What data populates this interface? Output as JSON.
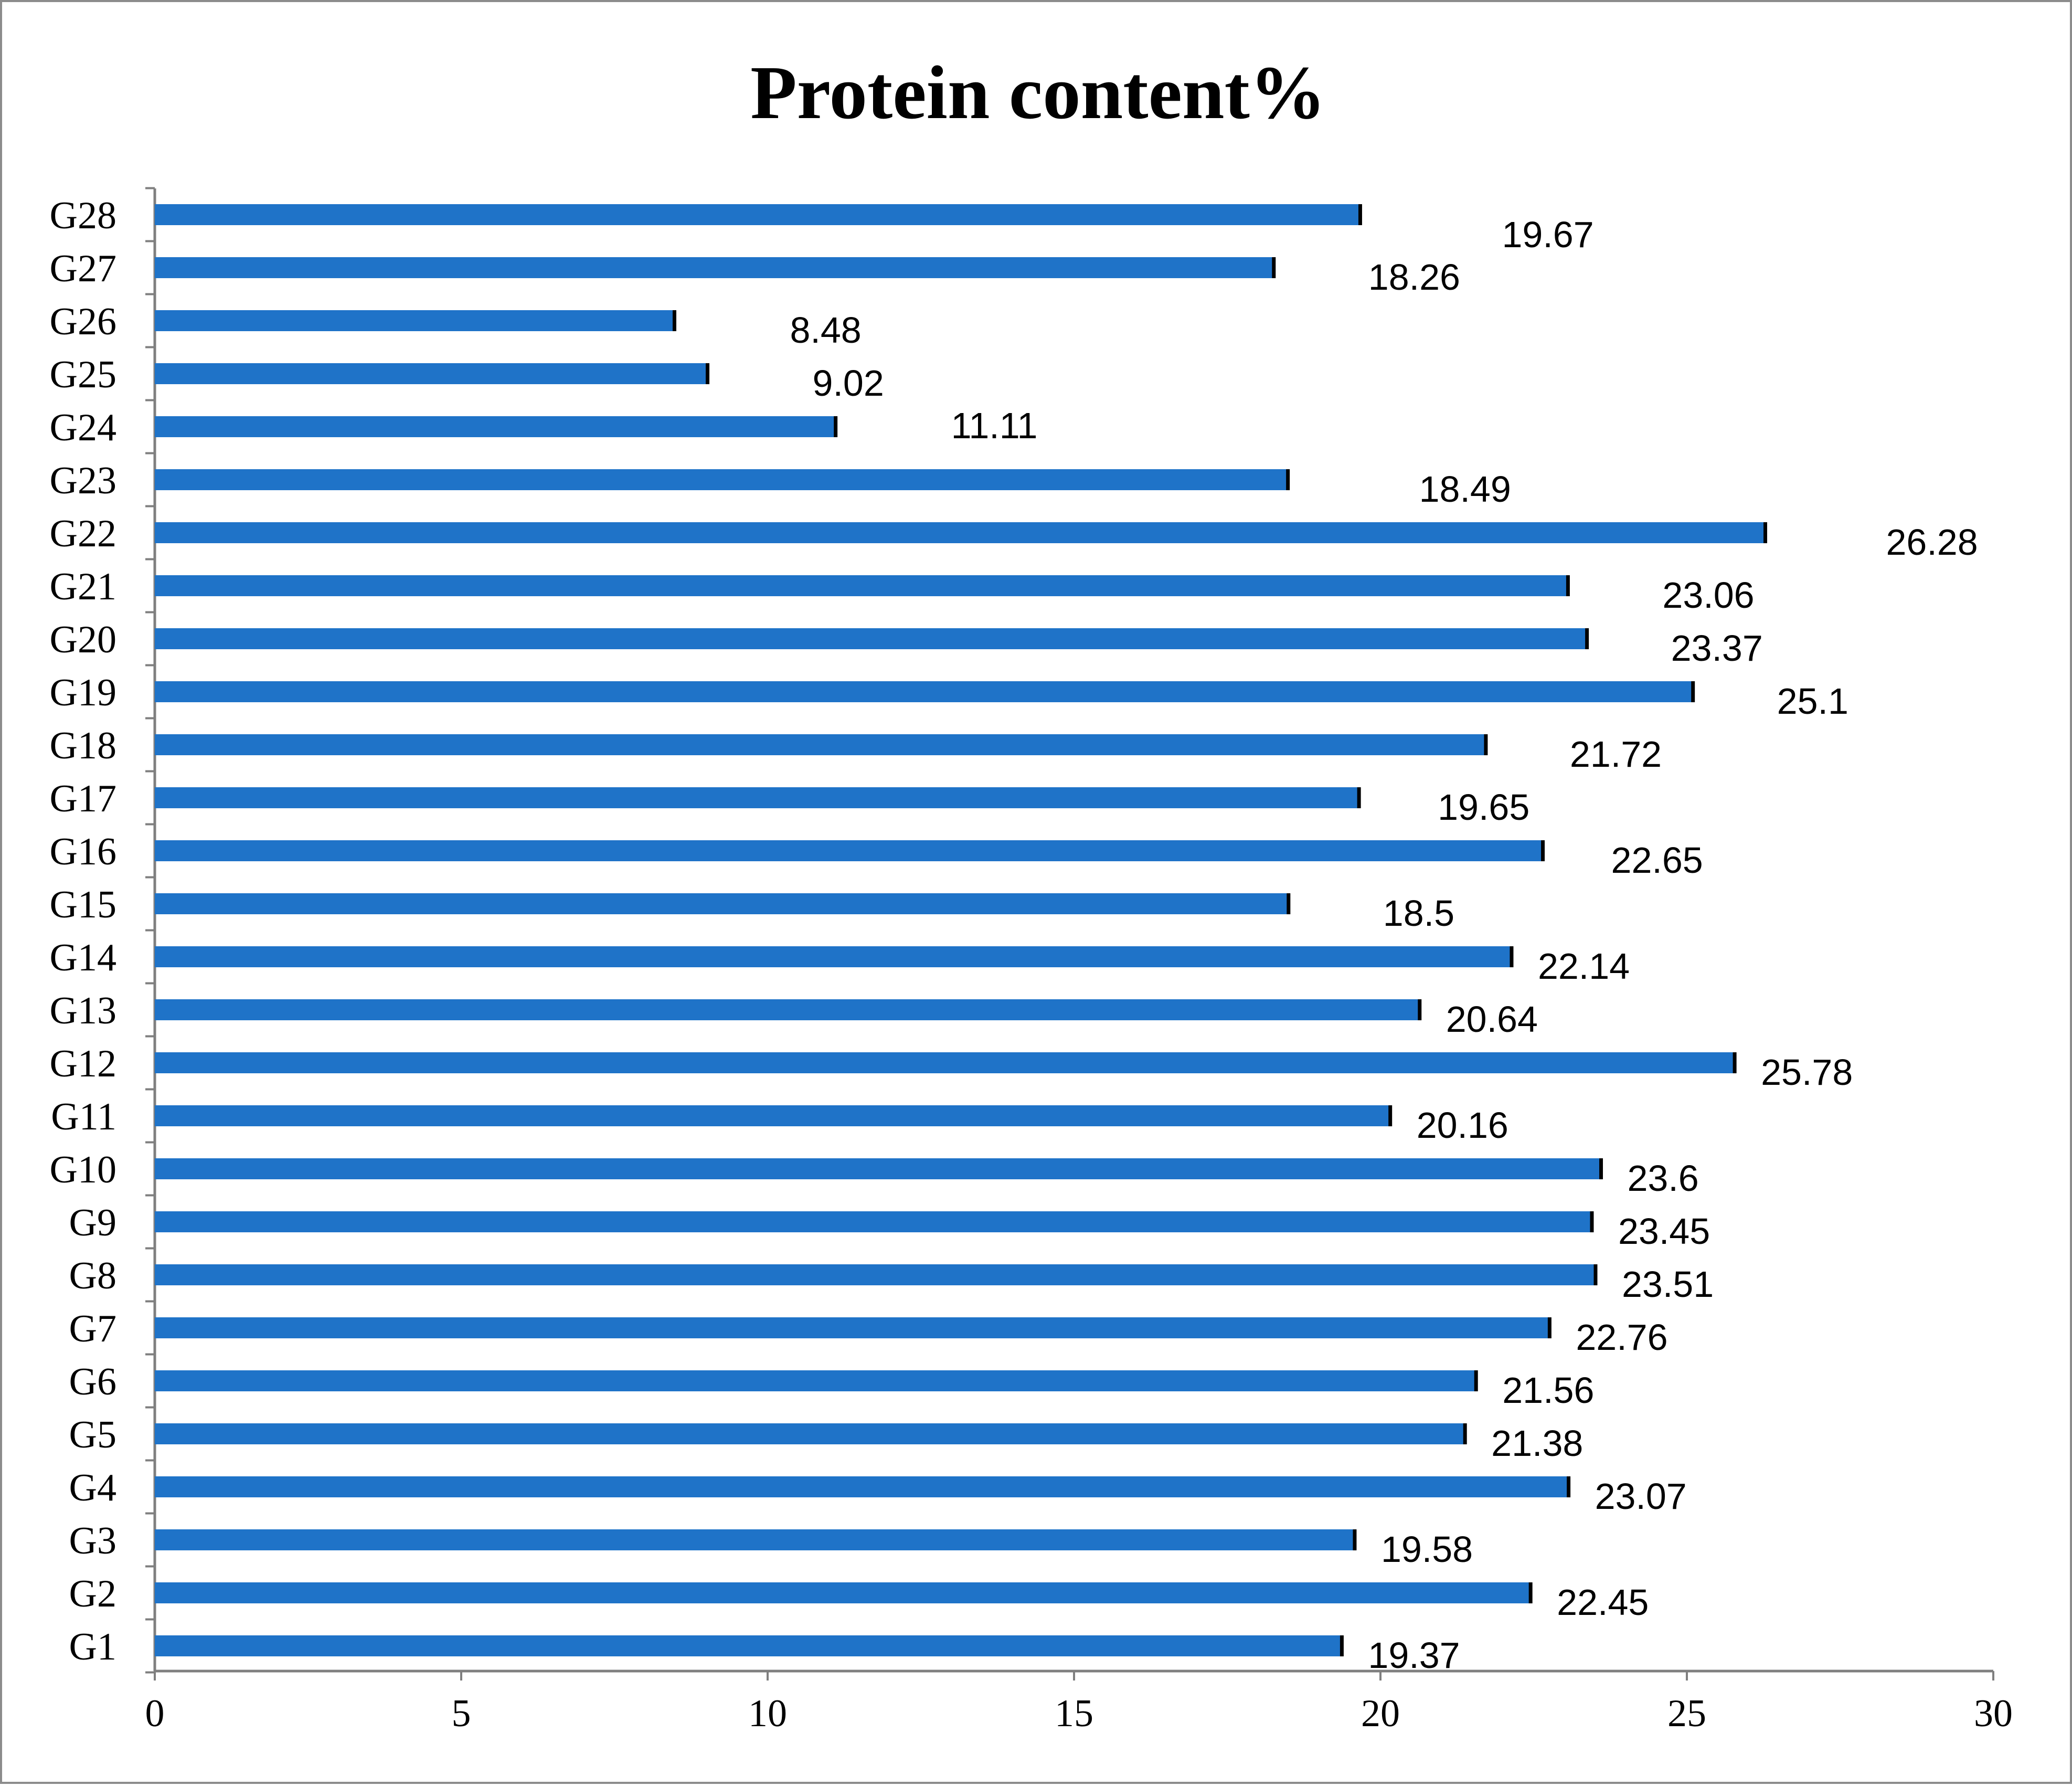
{
  "chart_data": {
    "type": "bar",
    "orientation": "horizontal",
    "title": "Protein content%",
    "xlabel": "",
    "ylabel": "",
    "xlim": [
      0,
      30
    ],
    "x_ticks": [
      0,
      5,
      10,
      15,
      20,
      25,
      30
    ],
    "grid": false,
    "bar_color": "#1F73C8",
    "error_bar_color": "#000000",
    "categories": [
      "G1",
      "G2",
      "G3",
      "G4",
      "G5",
      "G6",
      "G7",
      "G8",
      "G9",
      "G10",
      "G11",
      "G12",
      "G13",
      "G14",
      "G15",
      "G16",
      "G17",
      "G18",
      "G19",
      "G20",
      "G21",
      "G22",
      "G23",
      "G24",
      "G25",
      "G26",
      "G27",
      "G28"
    ],
    "values": [
      19.37,
      22.45,
      19.58,
      23.07,
      21.38,
      21.56,
      22.76,
      23.51,
      23.45,
      23.6,
      20.16,
      25.78,
      20.64,
      22.14,
      18.5,
      22.65,
      19.65,
      21.72,
      25.1,
      23.37,
      23.06,
      26.28,
      18.49,
      11.11,
      9.02,
      8.48,
      18.26,
      19.67
    ],
    "data_labels": [
      "19.37",
      "22.45",
      "19.58",
      "23.07",
      "21.38",
      "21.56",
      "22.76",
      "23.51",
      "23.45",
      "23.6",
      "20.16",
      "25.78",
      "20.64",
      "22.14",
      "18.5",
      "22.65",
      "19.65",
      "21.72",
      "25.1",
      "23.37",
      "23.06",
      "26.28",
      "18.49",
      "11.11",
      "9.02",
      "8.48",
      "18.26",
      "19.67"
    ]
  }
}
